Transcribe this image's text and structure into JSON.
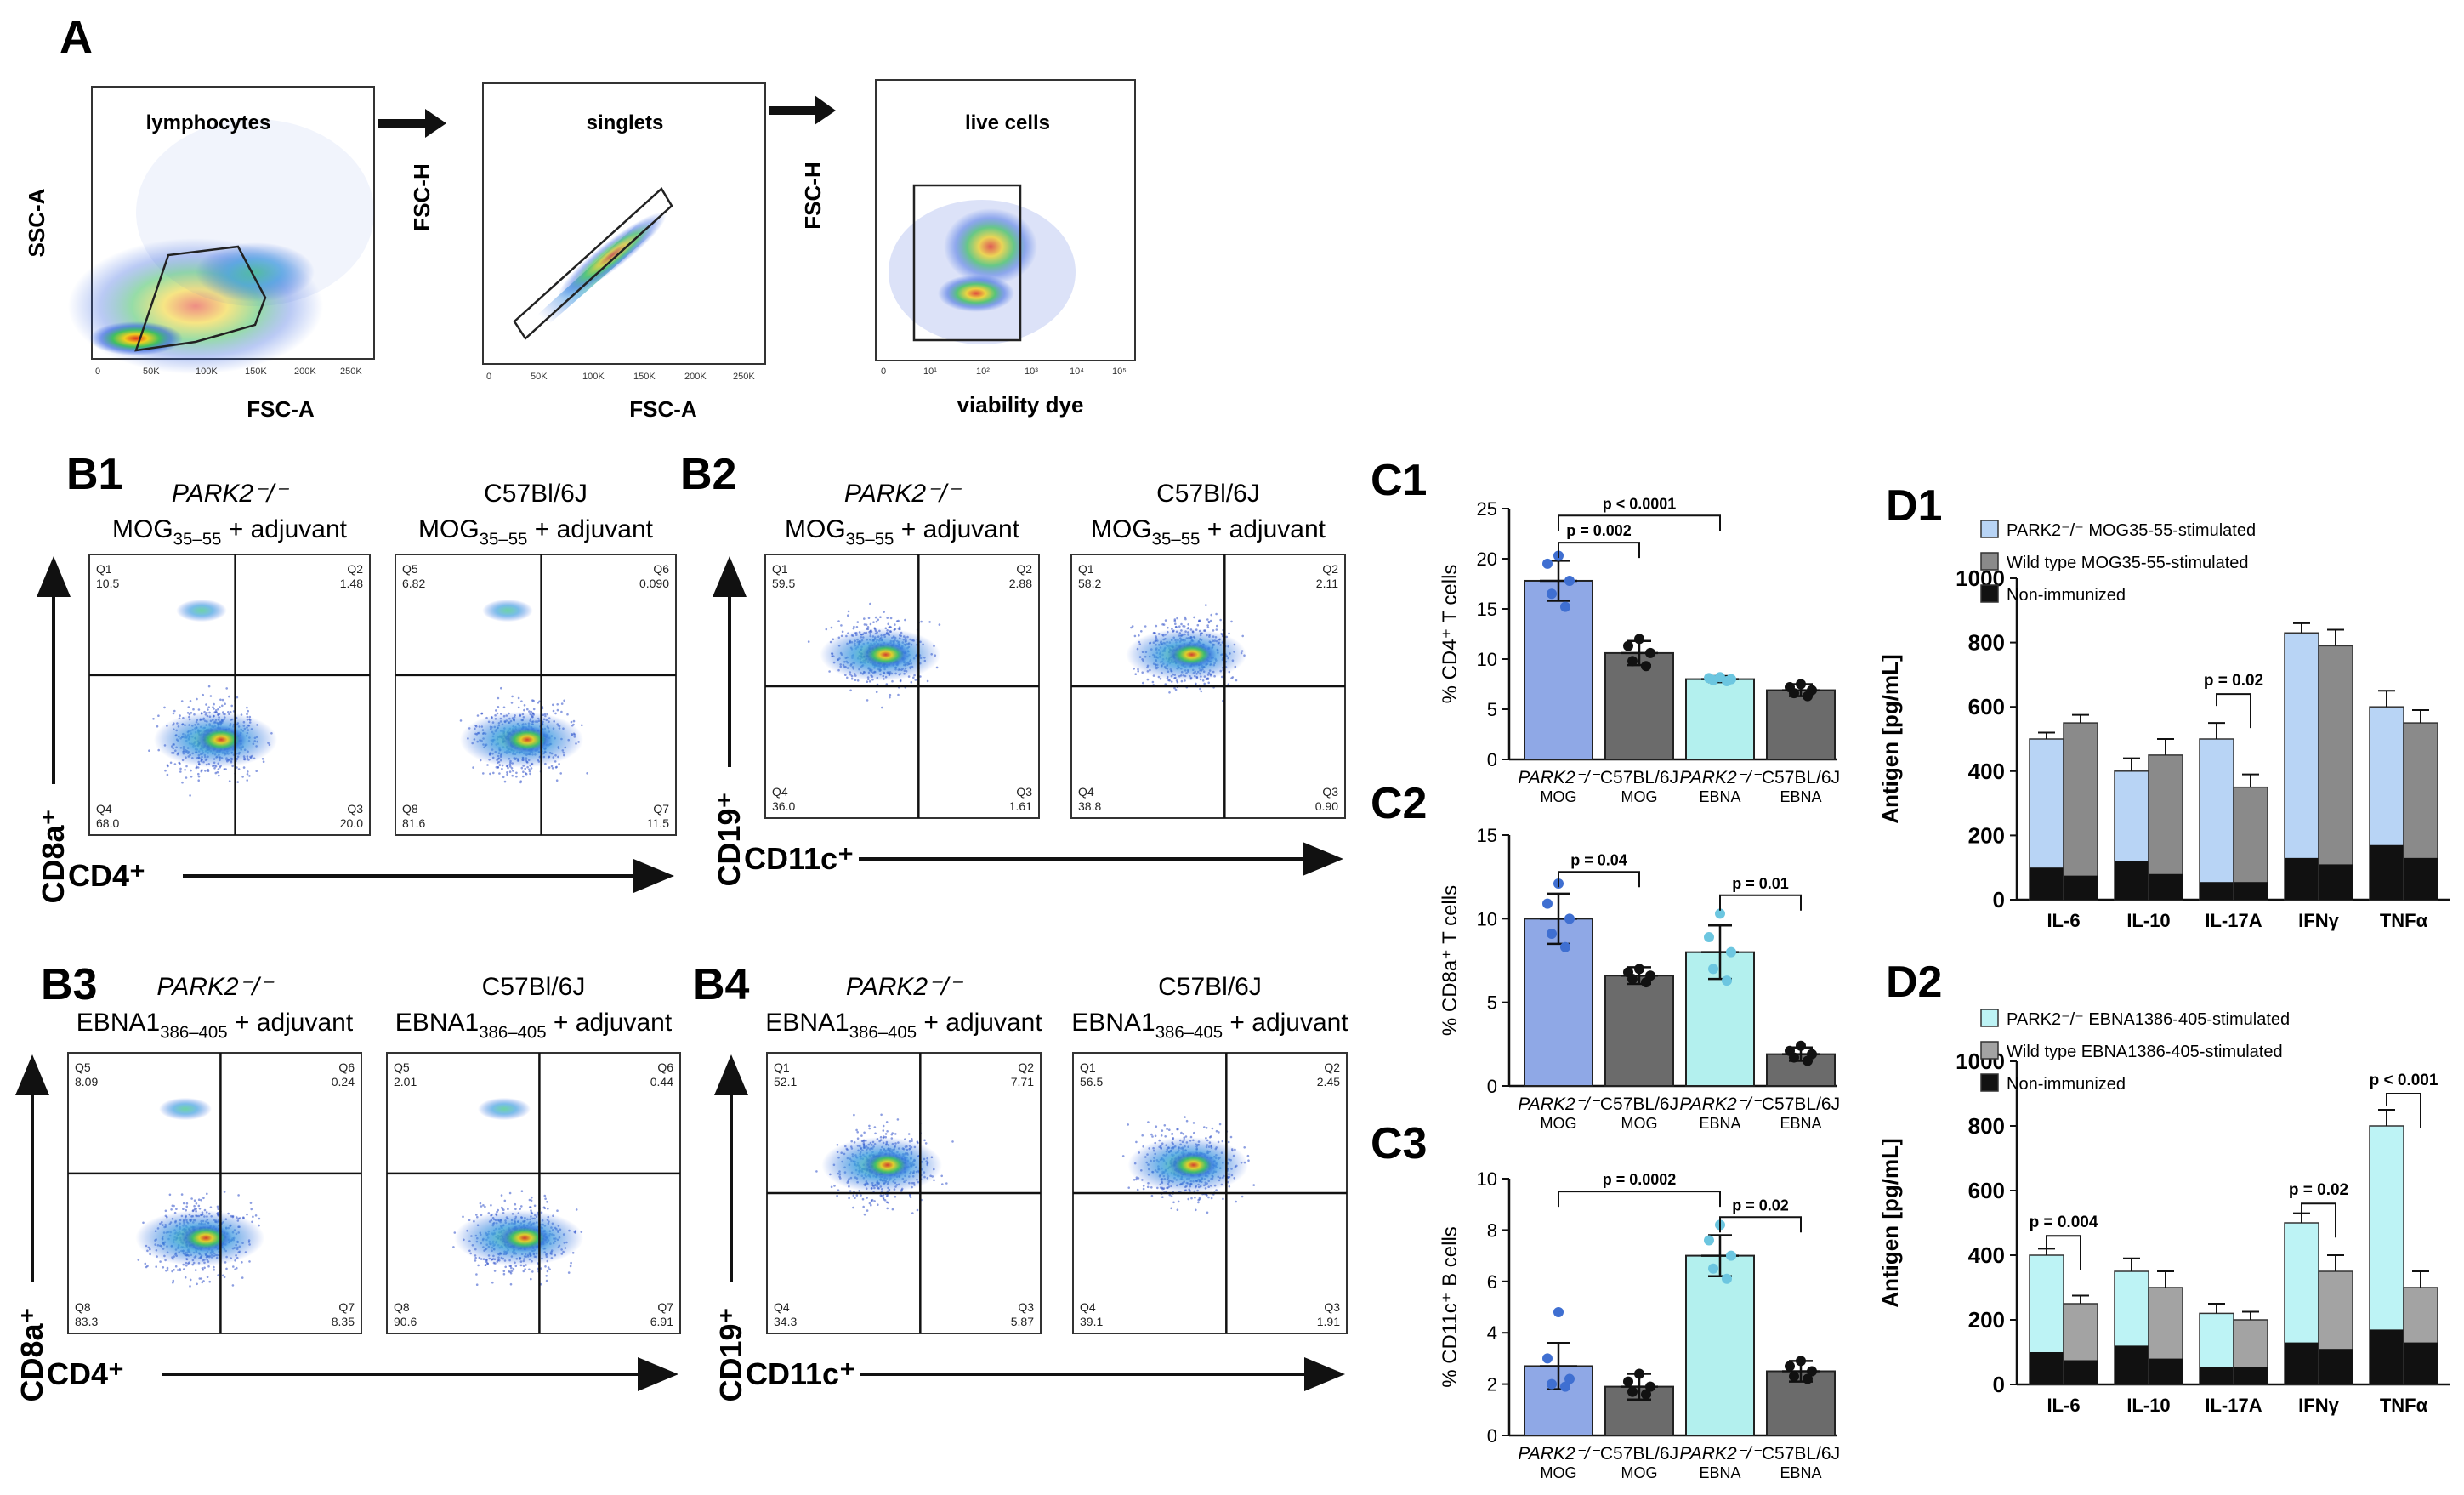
{
  "figure": {
    "panel_labels": {
      "A": "A",
      "B1": "B1",
      "B2": "B2",
      "B3": "B3",
      "B4": "B4",
      "C1": "C1",
      "C2": "C2",
      "C3": "C3",
      "D1": "D1",
      "D2": "D2"
    }
  },
  "gating": {
    "plots": [
      {
        "title": "lymphocytes",
        "xlabel": "FSC-A",
        "ylabel": "SSC-A"
      },
      {
        "title": "singlets",
        "xlabel": "FSC-A",
        "ylabel": "FSC-H"
      },
      {
        "title": "live cells",
        "xlabel": "viability dye",
        "ylabel": "FSC-H"
      }
    ],
    "linear_ticks": [
      "0",
      "50K",
      "100K",
      "150K",
      "200K",
      "250K"
    ],
    "log_ticks": [
      "0",
      "10¹",
      "10²",
      "10³",
      "10⁴",
      "10⁵"
    ]
  },
  "flow": {
    "B1": {
      "col1_strain": "PARK2⁻/⁻",
      "col1_cond": "MOG35–55 + adjuvant",
      "col2_strain": "C57Bl/6J",
      "col2_cond": "MOG35–55 + adjuvant",
      "xlabel": "CD4⁺",
      "ylabel": "CD8a⁺",
      "q1": [
        {
          "id": "Q1",
          "v": "10.5"
        },
        {
          "id": "Q2",
          "v": "1.48"
        },
        {
          "id": "Q4",
          "v": "68.0"
        },
        {
          "id": "Q3",
          "v": "20.0"
        }
      ],
      "q2": [
        {
          "id": "Q5",
          "v": "6.82"
        },
        {
          "id": "Q6",
          "v": "0.090"
        },
        {
          "id": "Q8",
          "v": "81.6"
        },
        {
          "id": "Q7",
          "v": "11.5"
        }
      ]
    },
    "B2": {
      "col1_strain": "PARK2⁻/⁻",
      "col1_cond": "MOG35–55 + adjuvant",
      "col2_strain": "C57Bl/6J",
      "col2_cond": "MOG35–55 + adjuvant",
      "xlabel": "CD11c⁺",
      "ylabel": "CD19⁺",
      "q1": [
        {
          "id": "Q1",
          "v": "59.5"
        },
        {
          "id": "Q2",
          "v": "2.88"
        },
        {
          "id": "Q4",
          "v": "36.0"
        },
        {
          "id": "Q3",
          "v": "1.61"
        }
      ],
      "q2": [
        {
          "id": "Q1",
          "v": "58.2"
        },
        {
          "id": "Q2",
          "v": "2.11"
        },
        {
          "id": "Q4",
          "v": "38.8"
        },
        {
          "id": "Q3",
          "v": "0.90"
        }
      ]
    },
    "B3": {
      "col1_strain": "PARK2⁻/⁻",
      "col1_cond": "EBNA1386–405 + adjuvant",
      "col2_strain": "C57Bl/6J",
      "col2_cond": "EBNA1386–405 + adjuvant",
      "xlabel": "CD4⁺",
      "ylabel": "CD8a⁺",
      "q1": [
        {
          "id": "Q5",
          "v": "8.09"
        },
        {
          "id": "Q6",
          "v": "0.24"
        },
        {
          "id": "Q8",
          "v": "83.3"
        },
        {
          "id": "Q7",
          "v": "8.35"
        }
      ],
      "q2": [
        {
          "id": "Q5",
          "v": "2.01"
        },
        {
          "id": "Q6",
          "v": "0.44"
        },
        {
          "id": "Q8",
          "v": "90.6"
        },
        {
          "id": "Q7",
          "v": "6.91"
        }
      ]
    },
    "B4": {
      "col1_strain": "PARK2⁻/⁻",
      "col1_cond": "EBNA1386–405 + adjuvant",
      "col2_strain": "C57Bl/6J",
      "col2_cond": "EBNA1386–405 + adjuvant",
      "xlabel": "CD11c⁺",
      "ylabel": "CD19⁺",
      "q1": [
        {
          "id": "Q1",
          "v": "52.1"
        },
        {
          "id": "Q2",
          "v": "7.71"
        },
        {
          "id": "Q4",
          "v": "34.3"
        },
        {
          "id": "Q3",
          "v": "5.87"
        }
      ],
      "q2": [
        {
          "id": "Q1",
          "v": "56.5"
        },
        {
          "id": "Q2",
          "v": "2.45"
        },
        {
          "id": "Q4",
          "v": "39.1"
        },
        {
          "id": "Q3",
          "v": "1.91"
        }
      ]
    }
  },
  "colors": {
    "park_mog": "#8fa8e6",
    "c57": "#6b6b6b",
    "park_ebna": "#b3f0ee",
    "c57_ebna": "#6b6b6b",
    "d1_light": "#b8d4f5",
    "d1_gray": "#8a8a8a",
    "d2_light": "#bdf3f5",
    "d2_gray": "#a3a3a3",
    "nonimm": "#111111",
    "dot_blue": "#3f6fd1",
    "dot_cyan": "#6cc6e0"
  },
  "chart_data": [
    {
      "id": "C1",
      "type": "bar",
      "ylabel": "% CD4⁺ T cells",
      "ylim": [
        0,
        25
      ],
      "yticks": [
        0,
        5,
        10,
        15,
        20,
        25
      ],
      "categories": [
        {
          "main": "PARK2⁻/⁻",
          "sub": "MOG"
        },
        {
          "main": "C57BL/6J",
          "sub": "MOG"
        },
        {
          "main": "PARK2⁻/⁻",
          "sub": "EBNA"
        },
        {
          "main": "C57BL/6J",
          "sub": "EBNA"
        }
      ],
      "values": [
        17.8,
        10.6,
        8.0,
        6.9
      ],
      "errors": [
        2.0,
        1.2,
        0.3,
        0.6
      ],
      "points": [
        [
          20.3,
          19.5,
          17.8,
          16.5,
          15.2
        ],
        [
          12.0,
          11.3,
          10.6,
          9.8,
          9.3
        ],
        [
          8.2,
          8.1,
          8.0,
          7.9,
          7.8
        ],
        [
          7.5,
          7.2,
          6.9,
          6.6,
          6.3
        ]
      ],
      "annotations": [
        {
          "text": "p = 0.002",
          "from": 0,
          "to": 1,
          "y": 21.6
        },
        {
          "text": "p < 0.0001",
          "from": 0,
          "to": 2,
          "y": 24.3
        }
      ]
    },
    {
      "id": "C2",
      "type": "bar",
      "ylabel": "% CD8a⁺ T cells",
      "ylim": [
        0,
        15
      ],
      "yticks": [
        0,
        5,
        10,
        15
      ],
      "categories": [
        {
          "main": "PARK2⁻/⁻",
          "sub": "MOG"
        },
        {
          "main": "C57BL/6J",
          "sub": "MOG"
        },
        {
          "main": "PARK2⁻/⁻",
          "sub": "EBNA"
        },
        {
          "main": "C57BL/6J",
          "sub": "EBNA"
        }
      ],
      "values": [
        10.0,
        6.6,
        8.0,
        1.9
      ],
      "errors": [
        1.5,
        0.5,
        1.6,
        0.4
      ],
      "points": [
        [
          12.1,
          10.9,
          10.0,
          9.1,
          8.3
        ],
        [
          7.0,
          6.8,
          6.6,
          6.4,
          6.2
        ],
        [
          10.3,
          8.9,
          8.0,
          7.0,
          6.3
        ],
        [
          2.4,
          2.1,
          1.9,
          1.7,
          1.5
        ]
      ],
      "annotations": [
        {
          "text": "p = 0.04",
          "from": 0,
          "to": 1,
          "y": 12.8
        },
        {
          "text": "p = 0.01",
          "from": 2,
          "to": 3,
          "y": 11.4
        }
      ]
    },
    {
      "id": "C3",
      "type": "bar",
      "ylabel": "% CD11c⁺ B cells",
      "ylim": [
        0,
        10
      ],
      "yticks": [
        0,
        2,
        4,
        6,
        8,
        10
      ],
      "categories": [
        {
          "main": "PARK2⁻/⁻",
          "sub": "MOG"
        },
        {
          "main": "C57BL/6J",
          "sub": "MOG"
        },
        {
          "main": "PARK2⁻/⁻",
          "sub": "EBNA"
        },
        {
          "main": "C57BL/6J",
          "sub": "EBNA"
        }
      ],
      "values": [
        2.7,
        1.9,
        7.0,
        2.5
      ],
      "errors": [
        0.9,
        0.5,
        0.8,
        0.4
      ],
      "points": [
        [
          4.8,
          3.0,
          2.2,
          2.0,
          1.9
        ],
        [
          2.4,
          2.1,
          1.9,
          1.7,
          1.6
        ],
        [
          8.2,
          7.6,
          7.0,
          6.5,
          6.1
        ],
        [
          2.9,
          2.7,
          2.5,
          2.3,
          2.2
        ]
      ],
      "annotations": [
        {
          "text": "p = 0.0002",
          "from": 0,
          "to": 2,
          "y": 9.5
        },
        {
          "text": "p = 0.02",
          "from": 2,
          "to": 3,
          "y": 8.5
        }
      ]
    },
    {
      "id": "D1",
      "type": "bar",
      "ylabel": "Antigen [pg/mL]",
      "ylim": [
        0,
        1000
      ],
      "yticks": [
        0,
        200,
        400,
        600,
        800,
        1000
      ],
      "categories": [
        "IL-6",
        "IL-10",
        "IL-17A",
        "IFNγ",
        "TNFα"
      ],
      "series": [
        {
          "name": "PARK2⁻/⁻ MOG35-55-stimulated",
          "values": [
            500,
            400,
            500,
            830,
            600
          ],
          "errors": [
            20,
            40,
            50,
            30,
            50
          ]
        },
        {
          "name": "Wild type MOG35-55-stimulated",
          "values": [
            550,
            450,
            350,
            790,
            550
          ],
          "errors": [
            25,
            50,
            40,
            50,
            40
          ]
        },
        {
          "name": "Non-immunized",
          "values": [
            [
              100,
              75
            ],
            [
              120,
              80
            ],
            [
              55,
              55
            ],
            [
              130,
              110
            ],
            [
              170,
              130
            ]
          ]
        }
      ],
      "legend": [
        "PARK2⁻/⁻ MOG35-55-stimulated",
        "Wild type MOG35-55-stimulated",
        "Non-immunized"
      ],
      "annotations": [
        {
          "text": "p = 0.02",
          "cat": 2,
          "y": 640
        }
      ]
    },
    {
      "id": "D2",
      "type": "bar",
      "ylabel": "Antigen [pg/mL]",
      "ylim": [
        0,
        1000
      ],
      "yticks": [
        0,
        200,
        400,
        600,
        800,
        1000
      ],
      "categories": [
        "IL-6",
        "IL-10",
        "IL-17A",
        "IFNγ",
        "TNFα"
      ],
      "series": [
        {
          "name": "PARK2⁻/⁻ EBNA1386-405-stimulated",
          "values": [
            400,
            350,
            220,
            500,
            800
          ],
          "errors": [
            20,
            40,
            30,
            30,
            50
          ]
        },
        {
          "name": "Wild type EBNA1386-405-stimulated",
          "values": [
            250,
            300,
            200,
            350,
            300
          ],
          "errors": [
            25,
            50,
            25,
            50,
            50
          ]
        },
        {
          "name": "Non-immunized",
          "values": [
            [
              100,
              75
            ],
            [
              120,
              80
            ],
            [
              55,
              55
            ],
            [
              130,
              110
            ],
            [
              170,
              130
            ]
          ]
        }
      ],
      "legend": [
        "PARK2⁻/⁻ EBNA1386-405-stimulated",
        "Wild type EBNA1386-405-stimulated",
        "Non-immunized"
      ],
      "annotations": [
        {
          "text": "p = 0.004",
          "cat": 0,
          "y": 460
        },
        {
          "text": "p = 0.02",
          "cat": 3,
          "y": 560
        },
        {
          "text": "p < 0.001",
          "cat": 4,
          "y": 900
        }
      ]
    }
  ]
}
